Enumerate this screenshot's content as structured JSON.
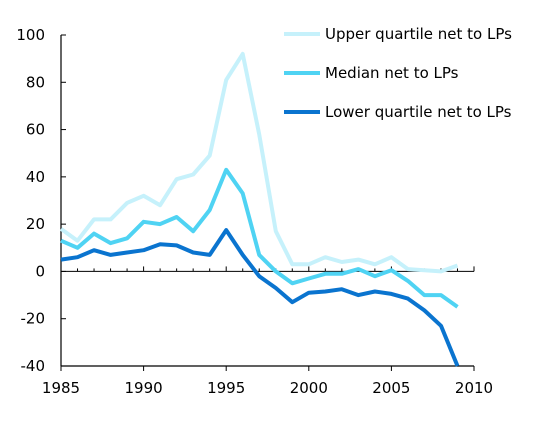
{
  "chart_data": {
    "type": "line",
    "x": [
      1985,
      1986,
      1987,
      1988,
      1989,
      1990,
      1991,
      1992,
      1993,
      1994,
      1995,
      1996,
      1997,
      1998,
      1999,
      2000,
      2001,
      2002,
      2003,
      2004,
      2005,
      2006,
      2007,
      2008,
      2009
    ],
    "series": [
      {
        "name": "Upper quartile net to LPs",
        "color": "#c6f1fb",
        "values": [
          18,
          13,
          22,
          22,
          29,
          32,
          28,
          39,
          41,
          49,
          81,
          92,
          58,
          17,
          3,
          3,
          6,
          4,
          5,
          3,
          6,
          1,
          0.5,
          0,
          2.5
        ]
      },
      {
        "name": "Median net to LPs",
        "color": "#4fd3f3",
        "values": [
          13,
          10,
          16,
          12,
          14,
          21,
          20,
          23,
          17,
          26,
          43,
          33,
          7,
          0,
          -5,
          -3,
          -1,
          -1,
          1,
          -2,
          0.5,
          -4,
          -10,
          -10,
          -15
        ]
      },
      {
        "name": "Lower quartile net to LPs",
        "color": "#0a74cf",
        "values": [
          5,
          6,
          9,
          7,
          8,
          9,
          11.5,
          11,
          8,
          7,
          17.5,
          7,
          -2,
          -7,
          -13,
          -9,
          -8.5,
          -7.5,
          -10,
          -8.5,
          -9.5,
          -11.5,
          -16.5,
          -23,
          -40
        ]
      }
    ],
    "xlim": [
      1985,
      2010
    ],
    "ylim": [
      -40,
      100
    ],
    "xticks": [
      1985,
      1990,
      1995,
      2000,
      2005,
      2010
    ],
    "yticks": [
      100,
      80,
      60,
      40,
      20,
      0,
      -20,
      -40
    ],
    "grid": false,
    "legend_position": "top-right"
  }
}
